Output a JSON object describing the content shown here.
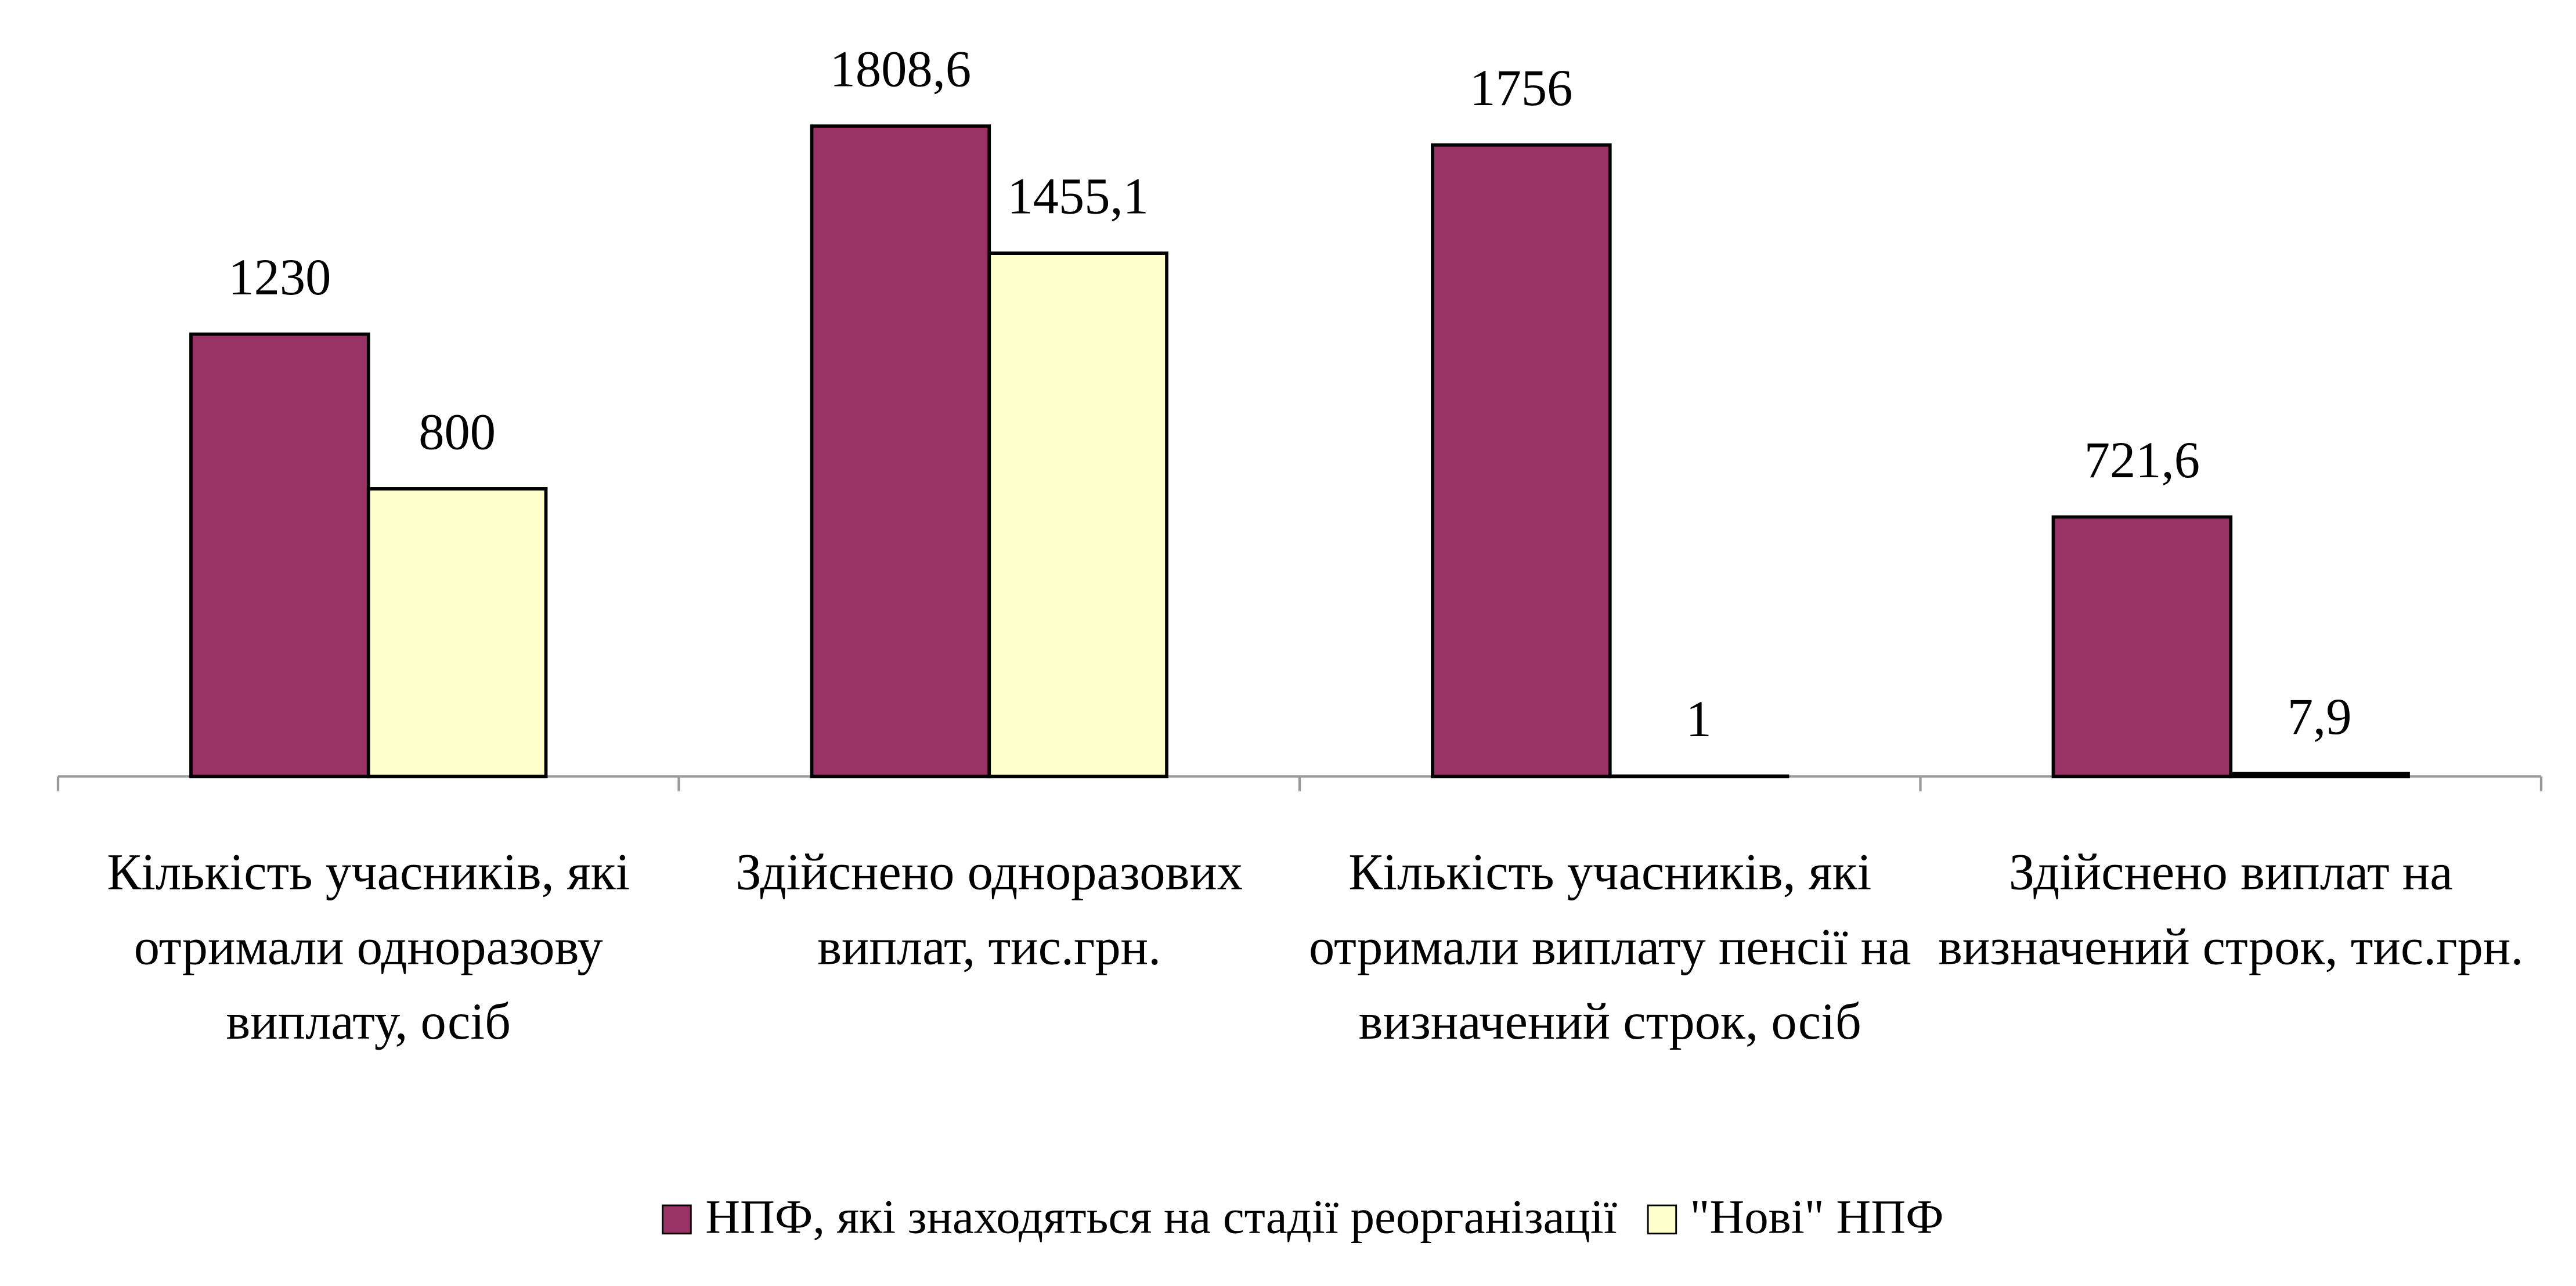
{
  "chart_data": {
    "type": "bar",
    "categories": [
      "Кількість учасників, які отримали одноразову виплату, осіб",
      "Здійснено одноразових виплат, тис.грн.",
      "Кількість учасників, які отримали виплату пенсії на визначений строк, осіб",
      "Здійснено виплат на визначений строк, тис.грн."
    ],
    "series": [
      {
        "name": "НПФ, які знаходяться на стадії реорганізації",
        "color": "#993366",
        "values": [
          1230,
          1808.6,
          1756,
          721.6
        ],
        "value_labels": [
          "1230",
          "1808,6",
          "1756",
          "721,6"
        ]
      },
      {
        "name": "\"Нові\" НПФ",
        "color": "#ffffcc",
        "values": [
          800,
          1455.1,
          1,
          7.9
        ],
        "value_labels": [
          "800",
          "1455,1",
          "1",
          "7,9"
        ]
      }
    ],
    "legend": "bottom"
  }
}
